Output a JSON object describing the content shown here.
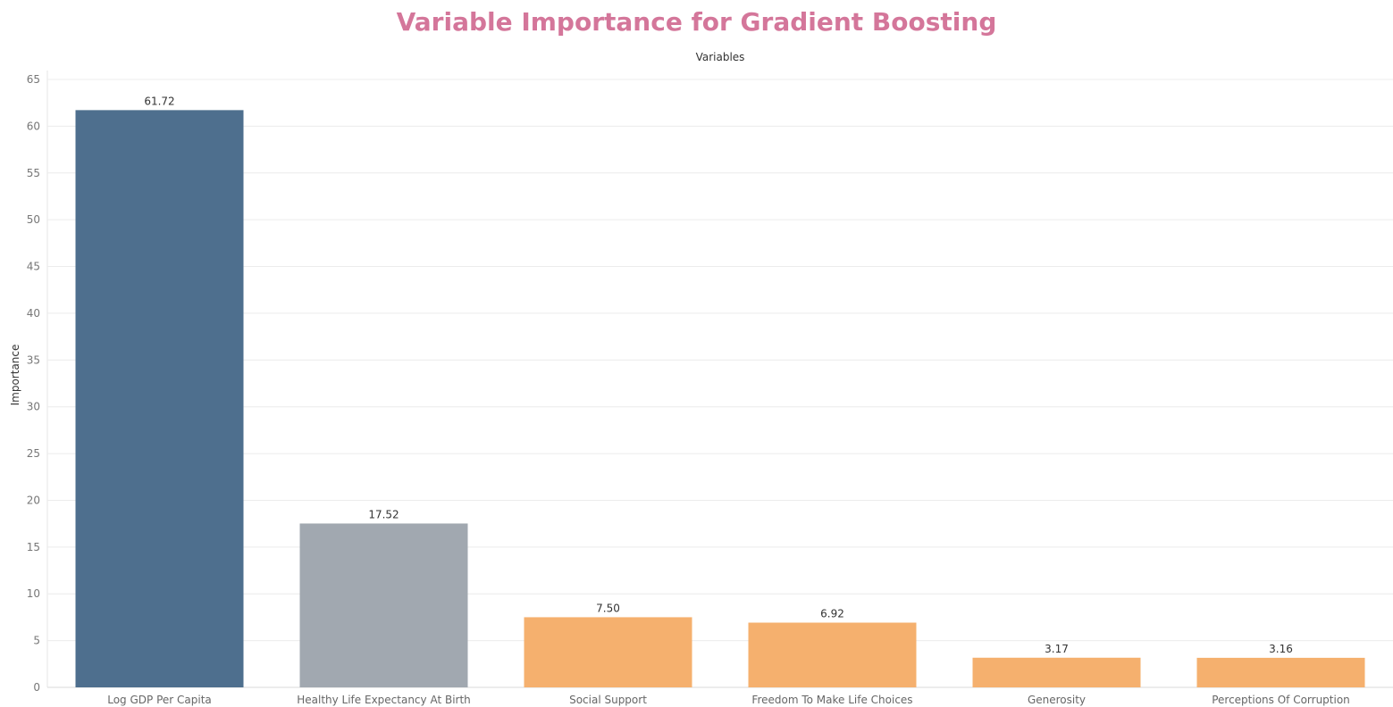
{
  "chart_data": {
    "type": "bar",
    "title": "Variable Importance for Gradient Boosting",
    "xlabel": "Variables",
    "ylabel": "Importance",
    "categories": [
      "Log GDP Per Capita",
      "Healthy Life Expectancy At Birth",
      "Social Support",
      "Freedom To Make Life Choices",
      "Generosity",
      "Perceptions Of Corruption"
    ],
    "values": [
      61.72,
      17.52,
      7.5,
      6.92,
      3.17,
      3.16
    ],
    "data_labels": [
      "61.72",
      "17.52",
      "7.50",
      "6.92",
      "3.17",
      "3.16"
    ],
    "bar_colors": [
      "#4e6f8e",
      "#a1a8b0",
      "#f5b06e",
      "#f5b06e",
      "#f5b06e",
      "#f5b06e"
    ],
    "ylim": [
      0,
      65
    ],
    "yticks": [
      0,
      5,
      10,
      15,
      20,
      25,
      30,
      35,
      40,
      45,
      50,
      55,
      60,
      65
    ],
    "grid": true,
    "title_color": "#d4769a"
  }
}
